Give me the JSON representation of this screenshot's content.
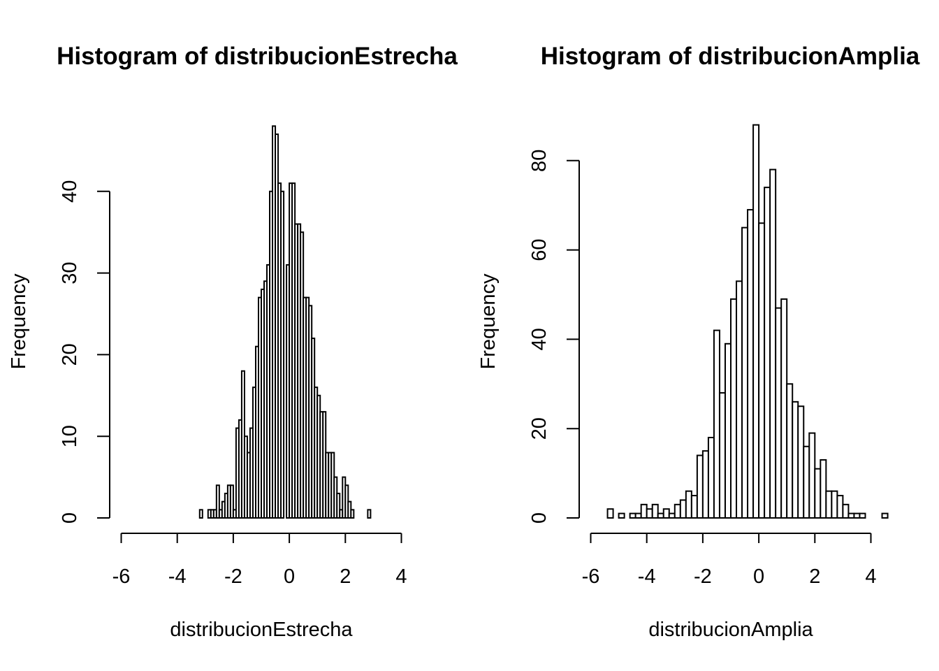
{
  "chart_data": [
    {
      "type": "bar",
      "title": "Histogram of distribucionEstrecha",
      "xlabel": "distribucionEstrecha",
      "ylabel": "Frequency",
      "xlim": [
        -6,
        4
      ],
      "ylim": [
        0,
        48
      ],
      "x_ticks": [
        -6,
        -4,
        -2,
        0,
        2,
        4
      ],
      "y_ticks": [
        0,
        10,
        20,
        30,
        40
      ],
      "bin_width": 0.1,
      "bin_start": -3.2,
      "values": [
        1,
        0,
        0,
        1,
        1,
        1,
        4,
        1,
        2,
        3,
        4,
        4,
        1,
        11,
        12,
        18,
        10,
        8,
        11,
        16,
        21,
        27,
        28,
        29,
        31,
        40,
        48,
        47,
        41,
        40,
        0,
        31,
        41,
        41,
        36,
        36,
        35,
        27,
        27,
        26,
        22,
        16,
        15,
        13,
        13,
        8,
        8,
        8,
        5,
        3,
        1,
        5,
        4,
        2,
        1,
        0,
        0,
        0,
        0,
        0,
        1
      ],
      "grid": false,
      "legend": "none"
    },
    {
      "type": "bar",
      "title": "Histogram of distribucionAmplia",
      "xlabel": "distribucionAmplia",
      "ylabel": "Frequency",
      "xlim": [
        -6,
        4
      ],
      "ylim": [
        0,
        88
      ],
      "x_ticks": [
        -6,
        -4,
        -2,
        0,
        2,
        4
      ],
      "y_ticks": [
        0,
        20,
        40,
        60,
        80
      ],
      "bin_width": 0.2,
      "bin_start": -5.4,
      "values": [
        2,
        0,
        1,
        0,
        1,
        1,
        3,
        2,
        3,
        1,
        2,
        1,
        3,
        4,
        6,
        5,
        14,
        15,
        18,
        42,
        28,
        39,
        49,
        53,
        65,
        69,
        88,
        66,
        74,
        78,
        47,
        49,
        30,
        26,
        25,
        16,
        19,
        11,
        13,
        6,
        6,
        5,
        3,
        1,
        1,
        1,
        0,
        0,
        0,
        1
      ],
      "grid": false,
      "legend": "none"
    }
  ]
}
